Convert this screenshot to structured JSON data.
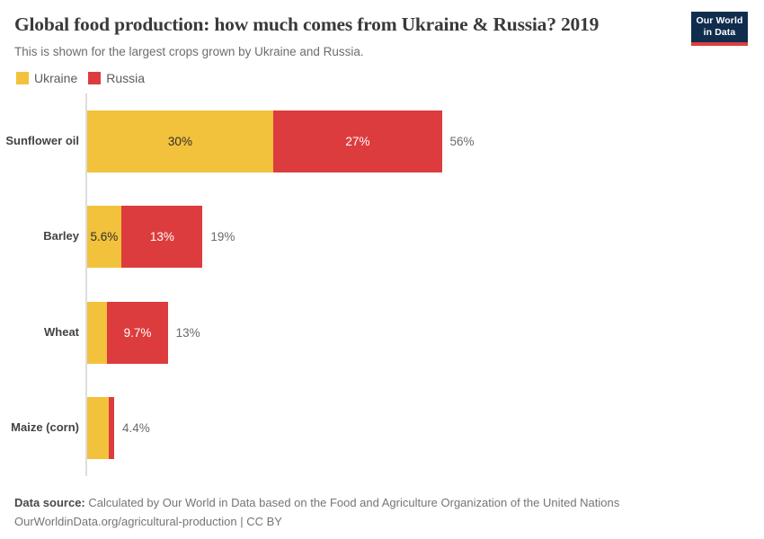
{
  "header": {
    "title": "Global food production: how much comes from Ukraine & Russia? 2019",
    "subtitle": "This is shown for the largest crops grown by Ukraine and Russia.",
    "logo": {
      "line1": "Our World",
      "line2": "in Data"
    }
  },
  "legend": {
    "items": [
      {
        "label": "Ukraine",
        "color": "#F2C23C"
      },
      {
        "label": "Russia",
        "color": "#DD3C3E"
      }
    ]
  },
  "chart_data": {
    "type": "bar",
    "orientation": "horizontal",
    "stacked": true,
    "title": "Global food production: how much comes from Ukraine & Russia? 2019",
    "categories": [
      "Sunflower oil",
      "Barley",
      "Wheat",
      "Maize (corn)"
    ],
    "series": [
      {
        "name": "Ukraine",
        "color": "#F2C23C",
        "values": [
          30,
          5.6,
          3.3,
          3.5
        ],
        "labels": [
          "30%",
          "5.6%",
          "",
          ""
        ]
      },
      {
        "name": "Russia",
        "color": "#DD3C3E",
        "values": [
          27,
          13,
          9.7,
          0.9
        ],
        "labels": [
          "27%",
          "13%",
          "9.7%",
          ""
        ]
      }
    ],
    "totals": [
      "56%",
      "19%",
      "13%",
      "4.4%"
    ],
    "xlim": [
      0,
      105
    ],
    "grid": false,
    "legend_position": "top-left"
  },
  "footer": {
    "source_label": "Data source:",
    "source_text": " Calculated by Our World in Data based on the Food and Agriculture Organization of the United Nations",
    "link_text": "OurWorldinData.org/agricultural-production | CC BY"
  },
  "colors": {
    "ukraine": "#F2C23C",
    "russia": "#DD3C3E",
    "logo_bg": "#102D4E",
    "logo_underline": "#DC3E3E",
    "axis": "#DDDDDD"
  }
}
